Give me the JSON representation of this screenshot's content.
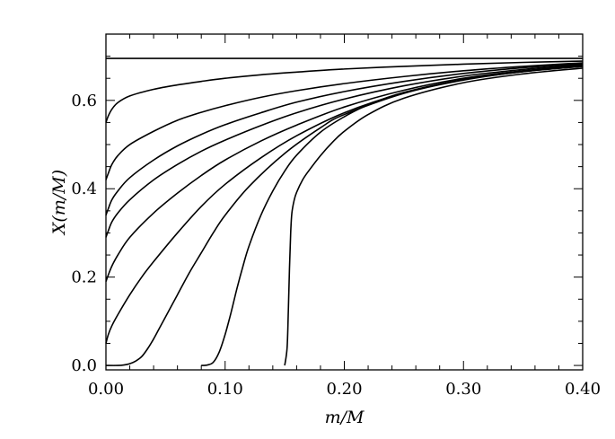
{
  "chart_data": {
    "type": "line",
    "title": "",
    "xlabel": "m/M",
    "ylabel": "X(m/M)",
    "xlim": [
      0.0,
      0.4
    ],
    "ylim": [
      -0.01,
      0.75
    ],
    "grid": false,
    "legend": "none",
    "line_color": "#000000",
    "x_ticks": [
      {
        "value": 0.0,
        "label": "0.00"
      },
      {
        "value": 0.1,
        "label": "0.10"
      },
      {
        "value": 0.2,
        "label": "0.20"
      },
      {
        "value": 0.3,
        "label": "0.30"
      },
      {
        "value": 0.4,
        "label": "0.40"
      }
    ],
    "y_ticks": [
      {
        "value": 0.0,
        "label": "0.0"
      },
      {
        "value": 0.2,
        "label": "0.2"
      },
      {
        "value": 0.4,
        "label": "0.4"
      },
      {
        "value": 0.6,
        "label": "0.6"
      }
    ],
    "series": [
      {
        "x": [
          0.0,
          0.4
        ],
        "y": [
          0.695,
          0.695
        ]
      },
      {
        "x": [
          0.0,
          0.002,
          0.005,
          0.01,
          0.02,
          0.04,
          0.06,
          0.08,
          0.1,
          0.13,
          0.16,
          0.2,
          0.25,
          0.3,
          0.35,
          0.4
        ],
        "y": [
          0.55,
          0.565,
          0.58,
          0.595,
          0.61,
          0.625,
          0.635,
          0.643,
          0.65,
          0.658,
          0.664,
          0.671,
          0.677,
          0.682,
          0.686,
          0.689
        ]
      },
      {
        "x": [
          0.0,
          0.002,
          0.005,
          0.01,
          0.02,
          0.04,
          0.06,
          0.08,
          0.1,
          0.13,
          0.16,
          0.2,
          0.25,
          0.3,
          0.35,
          0.4
        ],
        "y": [
          0.42,
          0.435,
          0.455,
          0.475,
          0.5,
          0.53,
          0.555,
          0.573,
          0.588,
          0.607,
          0.622,
          0.638,
          0.654,
          0.667,
          0.677,
          0.685
        ]
      },
      {
        "x": [
          0.0,
          0.002,
          0.005,
          0.01,
          0.02,
          0.04,
          0.06,
          0.08,
          0.1,
          0.13,
          0.16,
          0.2,
          0.25,
          0.3,
          0.35,
          0.4
        ],
        "y": [
          0.34,
          0.355,
          0.375,
          0.395,
          0.425,
          0.465,
          0.497,
          0.523,
          0.545,
          0.572,
          0.596,
          0.62,
          0.643,
          0.661,
          0.674,
          0.683
        ]
      },
      {
        "x": [
          0.0,
          0.002,
          0.005,
          0.01,
          0.02,
          0.04,
          0.06,
          0.08,
          0.1,
          0.13,
          0.16,
          0.2,
          0.25,
          0.3,
          0.35,
          0.4
        ],
        "y": [
          0.29,
          0.305,
          0.325,
          0.345,
          0.375,
          0.42,
          0.455,
          0.485,
          0.51,
          0.543,
          0.572,
          0.603,
          0.633,
          0.655,
          0.67,
          0.681
        ]
      },
      {
        "x": [
          0.0,
          0.002,
          0.005,
          0.01,
          0.02,
          0.04,
          0.06,
          0.08,
          0.1,
          0.13,
          0.16,
          0.2,
          0.25,
          0.3,
          0.35,
          0.4
        ],
        "y": [
          0.19,
          0.205,
          0.225,
          0.25,
          0.29,
          0.345,
          0.39,
          0.43,
          0.465,
          0.508,
          0.544,
          0.585,
          0.623,
          0.65,
          0.667,
          0.679
        ]
      },
      {
        "x": [
          0.0,
          0.002,
          0.005,
          0.01,
          0.02,
          0.03,
          0.04,
          0.06,
          0.08,
          0.1,
          0.13,
          0.16,
          0.2,
          0.25,
          0.3,
          0.35,
          0.4
        ],
        "y": [
          0.05,
          0.07,
          0.09,
          0.115,
          0.16,
          0.2,
          0.235,
          0.3,
          0.36,
          0.41,
          0.47,
          0.52,
          0.572,
          0.617,
          0.647,
          0.666,
          0.678
        ]
      },
      {
        "x": [
          0.0,
          0.01,
          0.015,
          0.02,
          0.025,
          0.03,
          0.035,
          0.04,
          0.045,
          0.05,
          0.06,
          0.07,
          0.08,
          0.09,
          0.1,
          0.12,
          0.15,
          0.18,
          0.2,
          0.25,
          0.3,
          0.35,
          0.4
        ],
        "y": [
          0.0,
          0.0,
          0.001,
          0.004,
          0.01,
          0.02,
          0.038,
          0.06,
          0.085,
          0.11,
          0.16,
          0.21,
          0.255,
          0.3,
          0.34,
          0.405,
          0.48,
          0.538,
          0.568,
          0.616,
          0.646,
          0.665,
          0.677
        ]
      },
      {
        "x": [
          0.08,
          0.085,
          0.09,
          0.095,
          0.1,
          0.105,
          0.11,
          0.115,
          0.12,
          0.13,
          0.14,
          0.15,
          0.16,
          0.18,
          0.2,
          0.22,
          0.25,
          0.3,
          0.35,
          0.4
        ],
        "y": [
          0.0,
          0.001,
          0.007,
          0.03,
          0.07,
          0.12,
          0.175,
          0.225,
          0.27,
          0.34,
          0.395,
          0.44,
          0.476,
          0.528,
          0.563,
          0.59,
          0.618,
          0.647,
          0.665,
          0.677
        ]
      },
      {
        "x": [
          0.15,
          0.152,
          0.153,
          0.154,
          0.155,
          0.156,
          0.158,
          0.16,
          0.165,
          0.17,
          0.18,
          0.19,
          0.2,
          0.22,
          0.25,
          0.3,
          0.35,
          0.4
        ],
        "y": [
          0.0,
          0.04,
          0.12,
          0.22,
          0.3,
          0.345,
          0.375,
          0.392,
          0.42,
          0.44,
          0.475,
          0.505,
          0.53,
          0.568,
          0.605,
          0.64,
          0.66,
          0.673
        ]
      }
    ]
  }
}
